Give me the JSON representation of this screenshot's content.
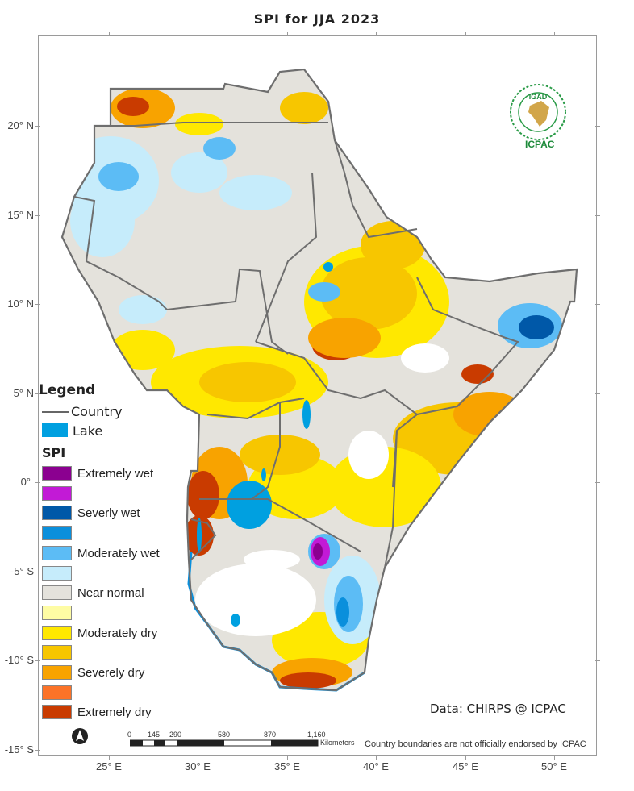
{
  "title": "SPI  for JJA 2023",
  "axes": {
    "latitude_labels": [
      "20° N",
      "15° N",
      "10° N",
      "5° N",
      "0°",
      "-5° S",
      "-10° S",
      "-15° S"
    ],
    "longitude_labels": [
      "25° E",
      "30° E",
      "35° E",
      "40° E",
      "45° E",
      "50° E"
    ]
  },
  "legend": {
    "heading": "Legend",
    "country_label": "Country",
    "lake_label": "Lake",
    "spi_heading": "SPI",
    "lake_color": "#00a0e0",
    "classes": [
      {
        "label": "Extremely wet",
        "color": "#8b0090"
      },
      {
        "label": "",
        "color": "#c21ad6"
      },
      {
        "label": "Severly wet",
        "color": "#0058a8"
      },
      {
        "label": "",
        "color": "#0a8fdc"
      },
      {
        "label": "Moderately wet",
        "color": "#5cbcf5"
      },
      {
        "label": "",
        "color": "#c6ecfb"
      },
      {
        "label": "Near normal",
        "color": "#e4e2dc"
      },
      {
        "label": "",
        "color": "#fefca4"
      },
      {
        "label": "Moderately dry",
        "color": "#ffe800"
      },
      {
        "label": "",
        "color": "#f7c600"
      },
      {
        "label": "Severely dry",
        "color": "#f8a300"
      },
      {
        "label": "",
        "color": "#fb7328"
      },
      {
        "label": "Extremely dry",
        "color": "#c93b00"
      }
    ]
  },
  "scale_bar": {
    "ticks": [
      "0",
      "145",
      "290",
      "580",
      "870",
      "1,160"
    ],
    "unit": "Kilometers"
  },
  "credit": "Data: CHIRPS @ ICPAC",
  "disclaimer": "Country boundaries are not officially endorsed by ICPAC",
  "logo": {
    "top_text": "IGAD",
    "bottom_text": "ICPAC"
  },
  "icons": [
    "north-arrow-icon",
    "igad-logo-icon"
  ]
}
